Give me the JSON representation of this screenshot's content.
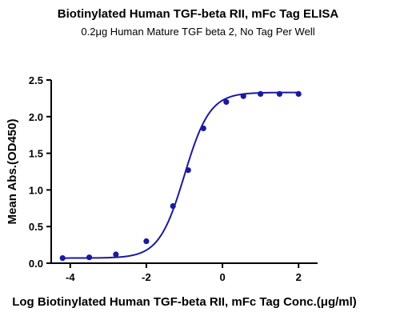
{
  "chart_data": {
    "type": "scatter",
    "title": "Biotinylated Human TGF-beta RII, mFc Tag ELISA",
    "subtitle": "0.2μg Human Mature TGF beta 2, No Tag Per Well",
    "xlabel": "Log Biotinylated Human TGF-beta RII, mFc Tag Conc.(μg/ml)",
    "ylabel": "Mean Abs.(OD450)",
    "xlim": [
      -4.5,
      2.5
    ],
    "ylim": [
      0,
      2.5
    ],
    "x_ticks": [
      -4,
      -2,
      0,
      2
    ],
    "y_ticks": [
      0.0,
      0.5,
      1.0,
      1.5,
      2.0,
      2.5
    ],
    "x_tick_labels": [
      "-4",
      "-2",
      "0",
      "2"
    ],
    "y_tick_labels": [
      "0.0",
      "0.5",
      "1.0",
      "1.5",
      "2.0",
      "2.5"
    ],
    "grid": false,
    "series": [
      {
        "x": [
          -4.2,
          -3.5,
          -2.8,
          -2.0,
          -1.3,
          -0.9,
          -0.5,
          0.1,
          0.55,
          1.0,
          1.5,
          2.0
        ],
        "y": [
          0.07,
          0.08,
          0.12,
          0.3,
          0.78,
          1.27,
          1.84,
          2.2,
          2.28,
          2.31,
          2.31,
          2.31
        ],
        "color": "#1a1aa0"
      }
    ],
    "fit": {
      "type": "four-parameter-logistic",
      "bottom": 0.07,
      "top": 2.33,
      "log_ec50": -1.0,
      "hill": 1.3,
      "x_range": [
        -4.2,
        2.0
      ]
    }
  }
}
